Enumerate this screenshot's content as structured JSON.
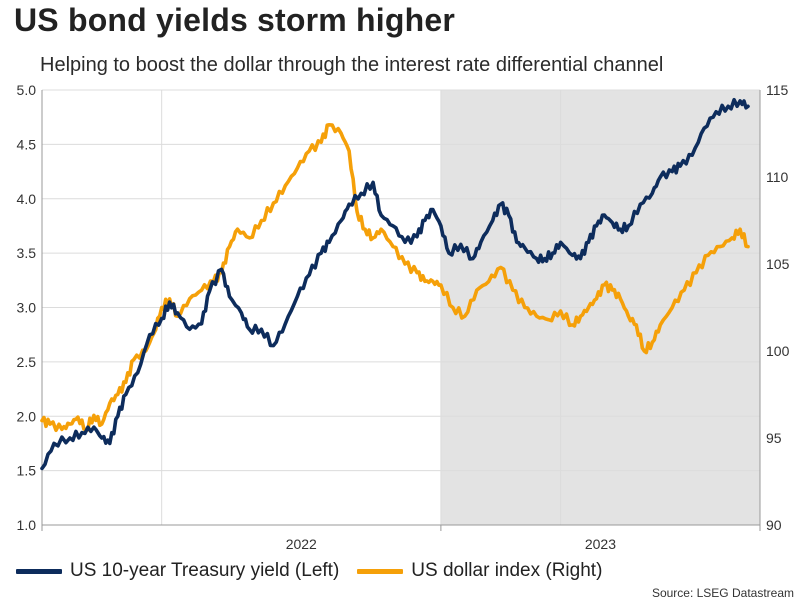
{
  "title": "US bond yields storm higher",
  "subtitle": "Helping to boost the dollar through the interest rate differential channel",
  "source": "Source: LSEG Datastream",
  "colors": {
    "yield": "#0d2c5c",
    "dollar": "#f5a009",
    "shade": "#e3e3e3",
    "grid": "#dcdcdc"
  },
  "chart_data": {
    "type": "line",
    "x_labels": [
      "2022",
      "2023"
    ],
    "x_range": [
      2021.75,
      2023.55
    ],
    "shaded_period": [
      2022.75,
      2023.55
    ],
    "left_axis": {
      "label": "US 10-year Treasury yield (Left)",
      "range": [
        1.0,
        5.0
      ],
      "ticks": [
        "1.0",
        "1.5",
        "2.0",
        "2.5",
        "3.0",
        "3.5",
        "4.0",
        "4.5",
        "5.0"
      ]
    },
    "right_axis": {
      "label": "US dollar index (Right)",
      "range": [
        90,
        115
      ],
      "ticks": [
        "90",
        "95",
        "100",
        "105",
        "110",
        "115"
      ]
    },
    "series": [
      {
        "name": "US 10-year Treasury yield (Left)",
        "axis": "left",
        "x": [
          2021.75,
          2021.78,
          2021.82,
          2021.85,
          2021.88,
          2021.9,
          2021.92,
          2021.94,
          2021.96,
          2021.99,
          2022.02,
          2022.05,
          2022.07,
          2022.09,
          2022.12,
          2022.15,
          2022.17,
          2022.2,
          2022.22,
          2022.25,
          2022.27,
          2022.3,
          2022.33,
          2022.36,
          2022.39,
          2022.42,
          2022.45,
          2022.47,
          2022.5,
          2022.52,
          2022.55,
          2022.58,
          2022.6,
          2022.63,
          2022.66,
          2022.69,
          2022.71,
          2022.73,
          2022.75,
          2022.77,
          2022.8,
          2022.83,
          2022.85,
          2022.88,
          2022.9,
          2022.92,
          2022.94,
          2022.96,
          2022.99,
          2023.01,
          2023.03,
          2023.05,
          2023.08,
          2023.1,
          2023.12,
          2023.14,
          2023.16,
          2023.18,
          2023.2,
          2023.22,
          2023.25,
          2023.28,
          2023.3,
          2023.33,
          2023.35,
          2023.38,
          2023.41,
          2023.44,
          2023.47,
          2023.5,
          2023.52
        ],
        "values": [
          1.52,
          1.75,
          1.8,
          1.85,
          1.9,
          1.8,
          1.75,
          2.0,
          2.2,
          2.4,
          2.75,
          2.9,
          3.05,
          2.95,
          2.8,
          2.85,
          3.15,
          3.35,
          3.1,
          2.95,
          2.8,
          2.8,
          2.65,
          2.85,
          3.1,
          3.3,
          3.5,
          3.6,
          3.8,
          3.95,
          4.05,
          4.15,
          3.85,
          3.75,
          3.6,
          3.65,
          3.8,
          3.9,
          3.75,
          3.5,
          3.58,
          3.45,
          3.6,
          3.8,
          3.95,
          3.85,
          3.6,
          3.55,
          3.45,
          3.45,
          3.5,
          3.6,
          3.48,
          3.45,
          3.6,
          3.75,
          3.85,
          3.78,
          3.72,
          3.75,
          3.95,
          4.05,
          4.2,
          4.25,
          4.3,
          4.4,
          4.65,
          4.8,
          4.85,
          4.9,
          4.85
        ]
      },
      {
        "name": "US dollar index (Right)",
        "axis": "right",
        "x": [
          2021.75,
          2021.77,
          2021.8,
          2021.82,
          2021.84,
          2021.86,
          2021.88,
          2021.9,
          2021.92,
          2021.94,
          2021.96,
          2021.98,
          2022.01,
          2022.03,
          2022.05,
          2022.07,
          2022.09,
          2022.12,
          2022.15,
          2022.18,
          2022.2,
          2022.22,
          2022.24,
          2022.27,
          2022.3,
          2022.33,
          2022.36,
          2022.39,
          2022.42,
          2022.45,
          2022.47,
          2022.5,
          2022.52,
          2022.54,
          2022.56,
          2022.58,
          2022.6,
          2022.63,
          2022.66,
          2022.69,
          2022.71,
          2022.73,
          2022.75,
          2022.78,
          2022.81,
          2022.84,
          2022.87,
          2022.9,
          2022.93,
          2022.96,
          2022.99,
          2023.02,
          2023.05,
          2023.08,
          2023.1,
          2023.12,
          2023.14,
          2023.16,
          2023.18,
          2023.2,
          2023.22,
          2023.24,
          2023.26,
          2023.28,
          2023.3,
          2023.33,
          2023.36,
          2023.39,
          2023.42,
          2023.45,
          2023.48,
          2023.5,
          2023.52
        ],
        "values": [
          96.0,
          95.8,
          95.5,
          95.8,
          96.2,
          95.5,
          96.3,
          95.8,
          97.0,
          97.5,
          98.2,
          99.5,
          100.0,
          101.0,
          102.5,
          103.0,
          102.0,
          103.0,
          103.5,
          104.0,
          104.5,
          106.0,
          107.0,
          106.5,
          107.5,
          108.5,
          109.5,
          110.5,
          111.5,
          112.0,
          113.0,
          112.5,
          111.5,
          108.0,
          107.0,
          106.5,
          107.0,
          106.0,
          105.0,
          104.5,
          104.0,
          104.0,
          103.8,
          102.5,
          102.0,
          103.5,
          104.0,
          104.8,
          103.5,
          102.5,
          102.0,
          101.8,
          102.3,
          101.5,
          102.0,
          102.5,
          103.0,
          103.8,
          103.5,
          103.0,
          102.0,
          101.5,
          100.0,
          100.5,
          101.5,
          102.5,
          103.5,
          104.5,
          105.5,
          106.0,
          106.5,
          107.0,
          106.0
        ]
      }
    ]
  }
}
